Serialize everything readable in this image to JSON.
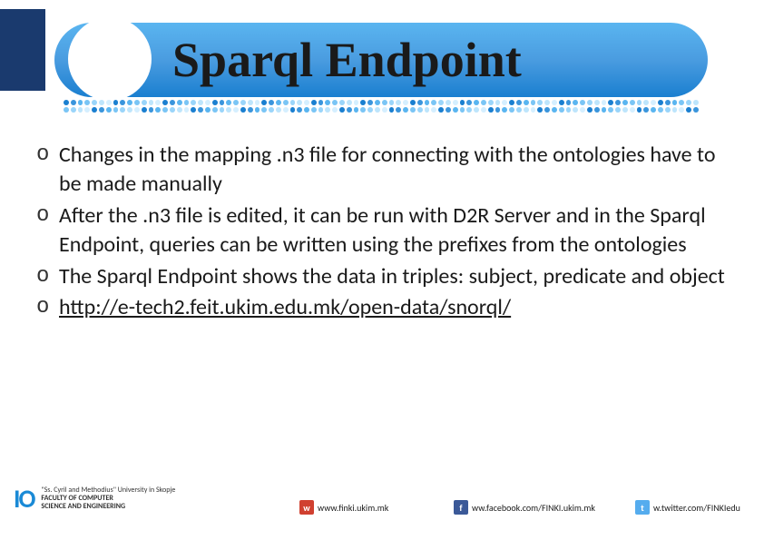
{
  "slide": {
    "title": "Sparql Endpoint",
    "bullets": [
      "Changes in the mapping .n3 file for connecting with the ontologies have to be made manually",
      "After the .n3 file is edited, it can be run with D2R Server and in the Sparql Endpoint, queries can be written using the prefixes from the ontologies",
      "The Sparql Endpoint shows the data in triples: subject, predicate and object"
    ],
    "link_text": "http://e-tech2.feit.ukim.edu.mk/open-data/snorql/"
  },
  "dots": {
    "palette": [
      "#1a7fd0",
      "#3a95dc",
      "#5ab5f0",
      "#7ac5f5",
      "#9ad5fa",
      "#bde5fc",
      "#d5efff"
    ],
    "count": 90
  },
  "logo": {
    "mark": "IO",
    "line1": "\"Ss. Cyril and Methodius\" University in Skopje",
    "line2a": "FACULTY OF COMPUTER",
    "line2b": "SCIENCE AND ENGINEERING"
  },
  "footer": {
    "site": "www.finki.ukim.mk",
    "facebook": "ww.facebook.com/FINKI.ukim.mk",
    "twitter": "w.twitter.com/FINKIedu"
  },
  "colors": {
    "banner_top": "#5ab5f0",
    "banner_bottom": "#1a7fd0",
    "left_block": "#1a3a6e",
    "text": "#1a1a1a"
  }
}
